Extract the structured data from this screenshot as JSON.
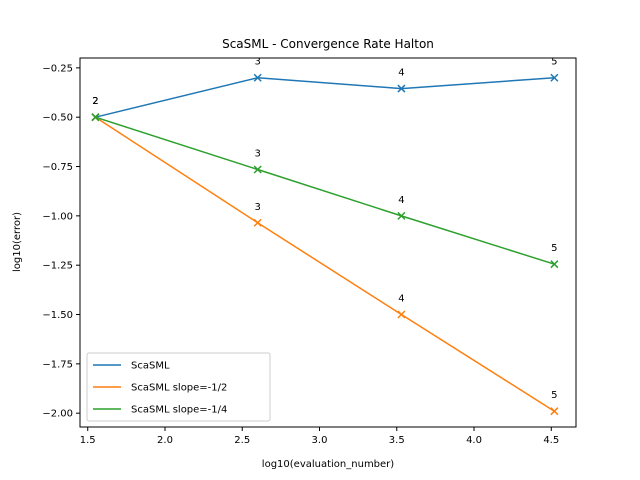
{
  "chart_data": {
    "type": "line",
    "title": "ScaSML - Convergence Rate Halton",
    "xlabel": "log10(evaluation_number)",
    "ylabel": "log10(error)",
    "xlim": [
      1.45,
      4.66
    ],
    "ylim": [
      -2.07,
      -0.2
    ],
    "xticks": [
      1.5,
      2.0,
      2.5,
      3.0,
      3.5,
      4.0,
      4.5
    ],
    "xtick_labels": [
      "1.5",
      "2.0",
      "2.5",
      "3.0",
      "3.5",
      "4.0",
      "4.5"
    ],
    "yticks": [
      -0.25,
      -0.5,
      -0.75,
      -1.0,
      -1.25,
      -1.5,
      -1.75,
      -2.0
    ],
    "ytick_labels": [
      "−0.25",
      "−0.50",
      "−0.75",
      "−1.00",
      "−1.25",
      "−1.50",
      "−1.75",
      "−2.00"
    ],
    "grid": false,
    "legend_position": "lower-left",
    "series": [
      {
        "name": "ScaSML",
        "color": "#1f77b4",
        "x": [
          1.55,
          2.6,
          3.53,
          4.52
        ],
        "y": [
          -0.5,
          -0.3,
          -0.355,
          -0.3
        ],
        "point_labels": [
          "2",
          "3",
          "4",
          "5"
        ]
      },
      {
        "name": "ScaSML slope=-1/2",
        "color": "#ff7f0e",
        "x": [
          1.55,
          2.6,
          3.53,
          4.52
        ],
        "y": [
          -0.5,
          -1.035,
          -1.5,
          -1.99
        ],
        "point_labels": [
          "2",
          "3",
          "4",
          "5"
        ]
      },
      {
        "name": "ScaSML slope=-1/4",
        "color": "#2ca02c",
        "x": [
          1.55,
          2.6,
          3.53,
          4.52
        ],
        "y": [
          -0.5,
          -0.765,
          -1.0,
          -1.245
        ],
        "point_labels": [
          "2",
          "3",
          "4",
          "5"
        ]
      }
    ]
  }
}
